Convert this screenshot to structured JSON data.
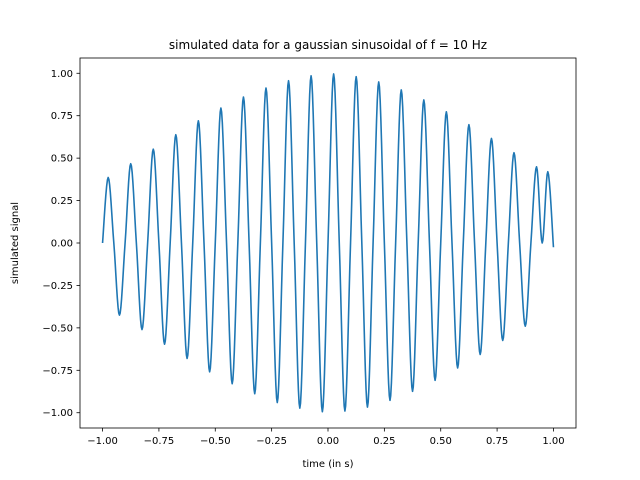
{
  "chart_data": {
    "type": "line",
    "title": "simulated data for a gaussian sinusoidal of f = 10 Hz",
    "xlabel": "time (in s)",
    "ylabel": "simulated signal",
    "xlim": [
      -1.1,
      1.1
    ],
    "ylim": [
      -1.09,
      1.09
    ],
    "xticks": [
      -1.0,
      -0.75,
      -0.5,
      -0.25,
      0.0,
      0.25,
      0.5,
      0.75,
      1.0
    ],
    "xtick_labels": [
      "−1.00",
      "−0.75",
      "−0.50",
      "−0.25",
      "0.00",
      "0.25",
      "0.50",
      "0.75",
      "1.00"
    ],
    "yticks": [
      -1.0,
      -0.75,
      -0.5,
      -0.25,
      0.0,
      0.25,
      0.5,
      0.75,
      1.0
    ],
    "ytick_labels": [
      "−1.00",
      "−0.75",
      "−0.50",
      "−0.25",
      "0.00",
      "0.25",
      "0.50",
      "0.75",
      "1.00"
    ],
    "grid": false,
    "line_color": "#1f77b4",
    "x": [
      -1.0,
      -0.975,
      -0.95,
      -0.925,
      -0.9,
      -0.875,
      -0.85,
      -0.825,
      -0.8,
      -0.775,
      -0.75,
      -0.725,
      -0.7,
      -0.675,
      -0.65,
      -0.625,
      -0.6,
      -0.575,
      -0.55,
      -0.525,
      -0.5,
      -0.475,
      -0.45,
      -0.425,
      -0.4,
      -0.375,
      -0.35,
      -0.325,
      -0.3,
      -0.275,
      -0.25,
      -0.225,
      -0.2,
      -0.175,
      -0.15,
      -0.125,
      -0.1,
      -0.075,
      -0.05,
      -0.025,
      0.0,
      0.025,
      0.05,
      0.075,
      0.1,
      0.125,
      0.15,
      0.175,
      0.2,
      0.225,
      0.25,
      0.275,
      0.3,
      0.325,
      0.35,
      0.375,
      0.4,
      0.425,
      0.45,
      0.475,
      0.5,
      0.525,
      0.55,
      0.575,
      0.6,
      0.625,
      0.65,
      0.675,
      0.7,
      0.725,
      0.75,
      0.775,
      0.8,
      0.825,
      0.85,
      0.875,
      0.9,
      0.925,
      0.95,
      0.975,
      1.0
    ],
    "y": [
      0.0,
      0.386,
      0.0,
      -0.425,
      0.0,
      0.467,
      0.0,
      -0.51,
      0.0,
      0.553,
      0.0,
      -0.596,
      0.0,
      0.638,
      0.0,
      -0.68,
      0.0,
      0.72,
      0.0,
      -0.759,
      0.0,
      0.795,
      0.0,
      -0.829,
      0.0,
      0.86,
      0.0,
      -0.888,
      0.0,
      0.913,
      0.0,
      -0.94,
      0.0,
      0.956,
      0.0,
      -0.973,
      0.0,
      0.985,
      0.0,
      -0.994,
      0.0,
      0.996,
      0.0,
      -0.99,
      0.0,
      0.98,
      0.0,
      -0.967,
      0.0,
      0.949,
      0.0,
      -0.927,
      0.0,
      0.902,
      0.0,
      -0.874,
      0.0,
      0.843,
      0.0,
      -0.809,
      0.0,
      0.773,
      0.0,
      -0.736,
      0.0,
      0.697,
      0.0,
      -0.657,
      0.0,
      0.616,
      0.0,
      -0.574,
      0.0,
      0.532,
      0.0,
      -0.49,
      0.0,
      0.449,
      0.0,
      0.42,
      -0.025
    ]
  }
}
